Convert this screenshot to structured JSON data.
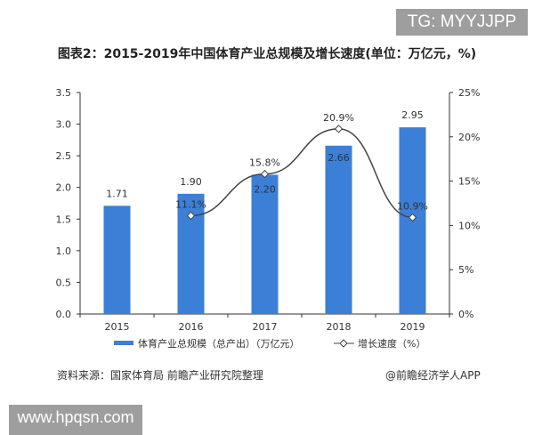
{
  "watermark_top": "TG: MYYJJPP",
  "watermark_bottom": "www.hpqsn.com",
  "source": "资料来源：国家体育局 前瞻产业研究院整理",
  "credit": "@前瞻经济学人APP",
  "chart_data": {
    "type": "bar+line",
    "title": "图表2：2015-2019年中国体育产业总规模及增长速度(单位：万亿元，%)",
    "categories": [
      "2015",
      "2016",
      "2017",
      "2018",
      "2019"
    ],
    "series": [
      {
        "name": "体育产业总规模（总产出）（万亿元）",
        "type": "bar",
        "axis": "left",
        "values": [
          1.71,
          1.9,
          2.2,
          2.66,
          2.95
        ],
        "labels": [
          "1.71",
          "1.90",
          "2.20",
          "2.66",
          "2.95"
        ],
        "color": "#3b7fd6"
      },
      {
        "name": "增长速度（%）",
        "type": "line",
        "axis": "right",
        "values": [
          null,
          11.1,
          15.8,
          20.9,
          10.9
        ],
        "labels": [
          "",
          "11.1%",
          "15.8%",
          "20.9%",
          "10.9%"
        ],
        "color": "#444444"
      }
    ],
    "left_axis": {
      "ylim": [
        0,
        3.5
      ],
      "ticks": [
        "0.0",
        "0.5",
        "1.0",
        "1.5",
        "2.0",
        "2.5",
        "3.0",
        "3.5"
      ]
    },
    "right_axis": {
      "ylim": [
        0,
        25
      ],
      "ticks": [
        "0%",
        "5%",
        "10%",
        "15%",
        "20%",
        "25%"
      ]
    },
    "grid": false,
    "legend": "bottom"
  }
}
